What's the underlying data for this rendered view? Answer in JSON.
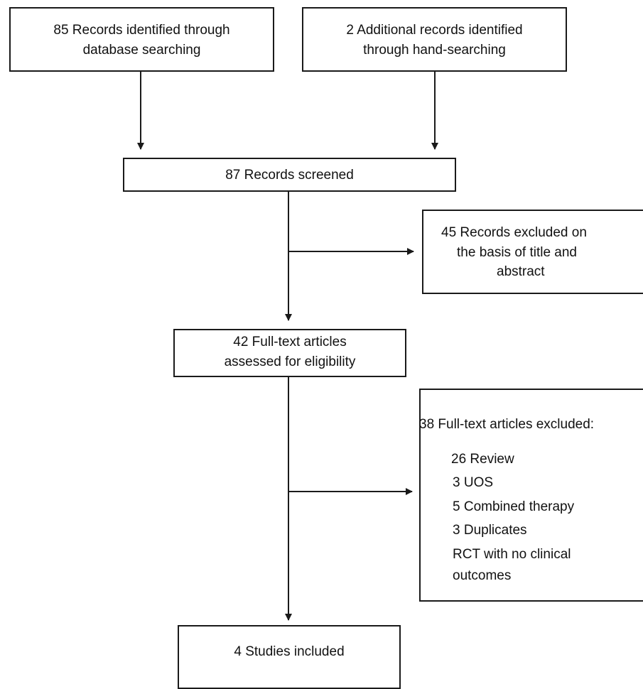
{
  "boxes": {
    "database": {
      "lines": [
        "85 Records identified through",
        "database searching"
      ]
    },
    "handsearch": {
      "lines": [
        "2 Additional records identified",
        "through hand-searching"
      ]
    },
    "screened": {
      "lines": [
        "87 Records screened"
      ]
    },
    "excluded_title": {
      "lines": [
        "45 Records excluded on",
        "the basis of title and",
        "abstract"
      ]
    },
    "fulltext": {
      "lines": [
        "42 Full-text articles",
        "assessed for eligibility"
      ]
    },
    "excluded_fulltext": {
      "heading": "38 Full-text articles  excluded:",
      "items": [
        "26 Review",
        "3 UOS",
        "5 Combined therapy",
        "3 Duplicates",
        "RCT with no clinical",
        "outcomes"
      ]
    },
    "included": {
      "lines": [
        "4 Studies included"
      ]
    }
  }
}
